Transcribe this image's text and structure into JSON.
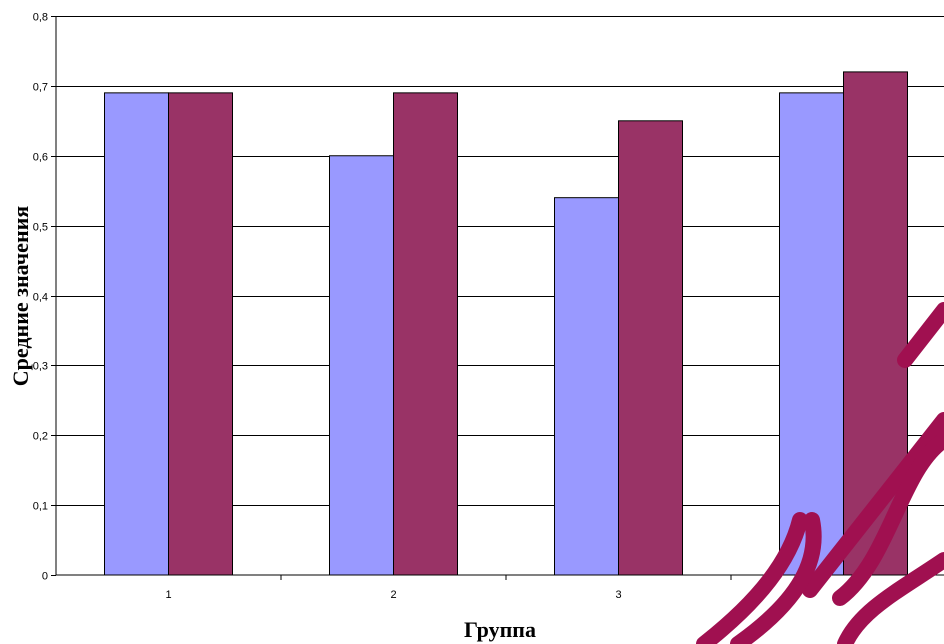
{
  "chart_data": {
    "type": "bar",
    "categories": [
      "1",
      "2",
      "3",
      "4"
    ],
    "series": [
      {
        "values": [
          0.69,
          0.6,
          0.54,
          0.69
        ],
        "color": "#9999ff"
      },
      {
        "values": [
          0.69,
          0.69,
          0.65,
          0.72
        ],
        "color": "#993366"
      }
    ],
    "xlabel": "Группа",
    "ylabel": "Средние значения",
    "ylim": [
      0,
      0.8
    ],
    "yticks": [
      "0",
      "0,1",
      "0,2",
      "0,3",
      "0,4",
      "0,5",
      "0,6",
      "0,7",
      "0,8"
    ],
    "grid": true
  },
  "watermark": {
    "color": "#a01050"
  }
}
